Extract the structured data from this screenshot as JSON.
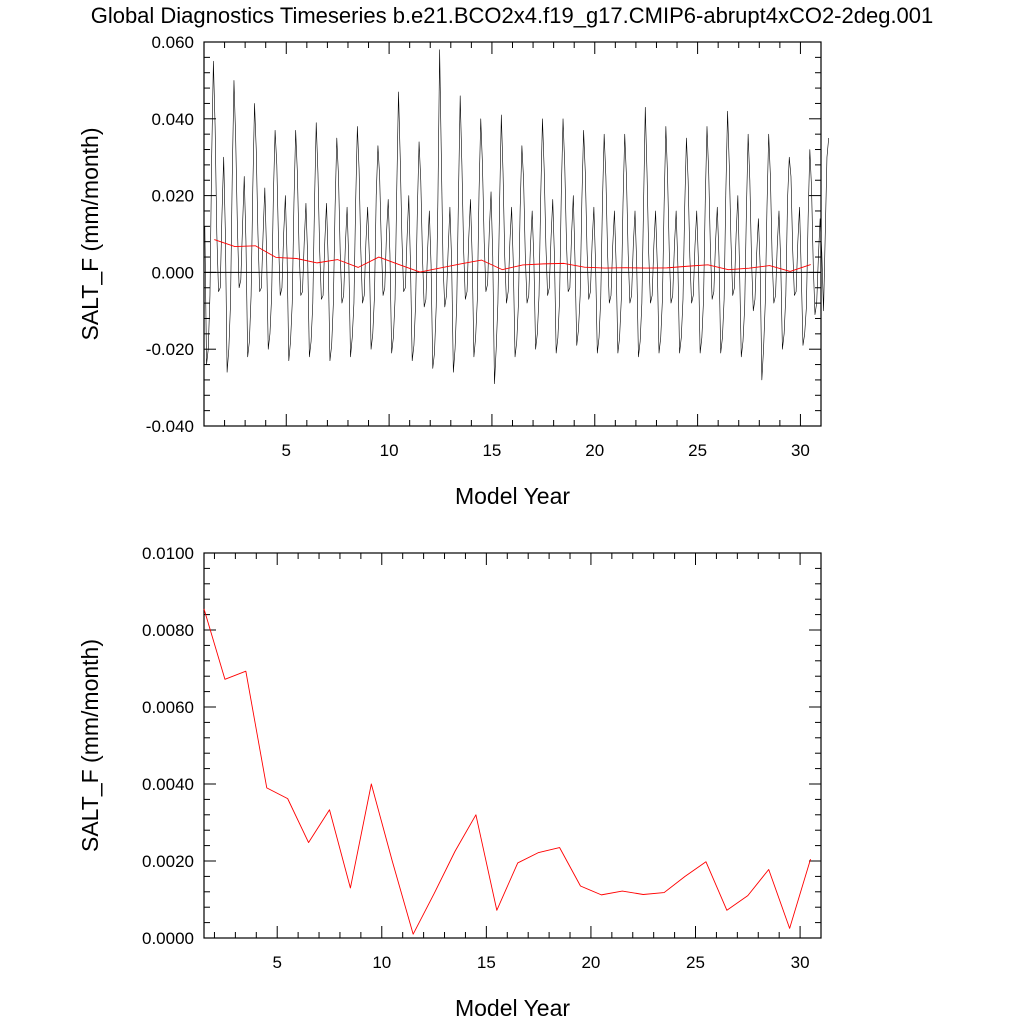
{
  "title": "Global Diagnostics Timeseries b.e21.BCO2x4.f19_g17.CMIP6-abrupt4xCO2-2deg.001",
  "colors": {
    "monthly": "#000000",
    "annual": "#ff0000",
    "zero_line": "#000000"
  },
  "chart_data": [
    {
      "type": "line",
      "xlabel": "Model Year",
      "ylabel": "SALT_F (mm/month)",
      "xlim": [
        1,
        31
      ],
      "ylim": [
        -0.04,
        0.06
      ],
      "xticks": [
        5,
        10,
        15,
        20,
        25,
        30
      ],
      "xtick_labels": [
        "5",
        "10",
        "15",
        "20",
        "25",
        "30"
      ],
      "yticks": [
        -0.04,
        -0.02,
        0.0,
        0.02,
        0.04,
        0.06
      ],
      "ytick_labels": [
        "-0.040",
        "-0.020",
        "0.000",
        "0.020",
        "0.040",
        "0.060"
      ],
      "reference_line_y": 0,
      "series": [
        {
          "color": "#000000",
          "x_start": 1.04,
          "x_step": 0.0833333,
          "values": [
            0.012,
            -0.024,
            -0.02,
            -0.006,
            0.03,
            0.055,
            0.038,
            0.01,
            -0.005,
            -0.004,
            0.015,
            0.03,
            0.01,
            -0.026,
            -0.02,
            -0.008,
            0.025,
            0.05,
            0.035,
            0.012,
            -0.004,
            -0.002,
            0.012,
            0.025,
            0.008,
            -0.022,
            -0.018,
            -0.006,
            0.022,
            0.044,
            0.032,
            0.01,
            -0.005,
            -0.004,
            0.01,
            0.022,
            0.006,
            -0.02,
            -0.016,
            -0.006,
            0.02,
            0.037,
            0.028,
            0.008,
            -0.006,
            -0.004,
            0.01,
            0.02,
            0.004,
            -0.023,
            -0.018,
            -0.008,
            0.018,
            0.037,
            0.026,
            0.006,
            -0.006,
            -0.005,
            0.008,
            0.018,
            0.004,
            -0.022,
            -0.018,
            -0.008,
            0.018,
            0.039,
            0.026,
            0.006,
            -0.007,
            -0.006,
            0.008,
            0.018,
            0.003,
            -0.023,
            -0.019,
            -0.008,
            0.017,
            0.035,
            0.025,
            0.005,
            -0.008,
            -0.006,
            0.007,
            0.017,
            0.003,
            -0.022,
            -0.017,
            -0.008,
            0.018,
            0.038,
            0.027,
            0.006,
            -0.008,
            -0.006,
            0.008,
            0.017,
            0.004,
            -0.02,
            -0.016,
            -0.006,
            0.02,
            0.033,
            0.025,
            0.007,
            -0.006,
            -0.004,
            0.01,
            0.019,
            0.005,
            -0.021,
            -0.017,
            -0.007,
            0.022,
            0.047,
            0.03,
            0.009,
            -0.005,
            -0.004,
            0.009,
            0.02,
            0.002,
            -0.023,
            -0.019,
            -0.008,
            0.016,
            0.034,
            0.024,
            0.004,
            -0.009,
            -0.007,
            0.006,
            0.016,
            0.002,
            -0.025,
            -0.021,
            -0.009,
            0.019,
            0.058,
            0.03,
            0.002,
            -0.009,
            -0.006,
            0.006,
            0.017,
            0.003,
            -0.026,
            -0.02,
            -0.008,
            0.02,
            0.046,
            0.028,
            0.006,
            -0.007,
            -0.005,
            0.009,
            0.019,
            0.004,
            -0.022,
            -0.017,
            -0.007,
            0.021,
            0.04,
            0.028,
            0.008,
            -0.005,
            -0.003,
            0.011,
            0.021,
            0.004,
            -0.029,
            -0.02,
            -0.008,
            0.018,
            0.041,
            0.026,
            0.004,
            -0.008,
            -0.005,
            0.008,
            0.017,
            0.002,
            -0.022,
            -0.018,
            -0.008,
            0.017,
            0.033,
            0.024,
            0.004,
            -0.008,
            -0.006,
            0.007,
            0.016,
            0.003,
            -0.02,
            -0.016,
            -0.006,
            0.02,
            0.04,
            0.027,
            0.007,
            -0.006,
            -0.004,
            0.009,
            0.019,
            0.004,
            -0.021,
            -0.017,
            -0.007,
            0.021,
            0.04,
            0.028,
            0.008,
            -0.005,
            -0.004,
            0.01,
            0.02,
            0.003,
            -0.019,
            -0.015,
            -0.006,
            0.019,
            0.037,
            0.026,
            0.006,
            -0.007,
            -0.005,
            0.008,
            0.017,
            0.002,
            -0.021,
            -0.017,
            -0.007,
            0.018,
            0.036,
            0.025,
            0.005,
            -0.008,
            -0.006,
            0.007,
            0.016,
            0.002,
            -0.021,
            -0.017,
            -0.007,
            0.018,
            0.036,
            0.025,
            0.005,
            -0.008,
            -0.006,
            0.007,
            0.016,
            0.002,
            -0.022,
            -0.018,
            -0.008,
            0.018,
            0.043,
            0.026,
            0.005,
            -0.008,
            -0.006,
            0.007,
            0.016,
            0.002,
            -0.021,
            -0.017,
            -0.007,
            0.018,
            0.038,
            0.025,
            0.005,
            -0.008,
            -0.006,
            0.007,
            0.016,
            0.002,
            -0.021,
            -0.017,
            -0.007,
            0.017,
            0.035,
            0.024,
            0.004,
            -0.008,
            -0.006,
            0.007,
            0.016,
            0.003,
            -0.021,
            -0.017,
            -0.007,
            0.019,
            0.038,
            0.026,
            0.006,
            -0.007,
            -0.005,
            0.008,
            0.017,
            0.004,
            -0.021,
            -0.017,
            -0.007,
            0.021,
            0.042,
            0.028,
            0.008,
            -0.006,
            -0.004,
            0.01,
            0.02,
            0.001,
            -0.022,
            -0.018,
            -0.009,
            0.016,
            0.036,
            0.024,
            0.003,
            -0.01,
            -0.007,
            0.005,
            0.014,
            0.002,
            -0.028,
            -0.02,
            -0.008,
            0.017,
            0.036,
            0.025,
            0.004,
            -0.008,
            -0.006,
            0.007,
            0.016,
            0.003,
            -0.02,
            -0.016,
            -0.006,
            0.019,
            0.03,
            0.025,
            0.006,
            -0.006,
            -0.005,
            0.008,
            0.017,
            0.0,
            -0.019,
            -0.016,
            -0.009,
            0.014,
            0.032,
            0.022,
            0.002,
            -0.011,
            -0.008,
            0.004,
            0.014,
            0.005,
            -0.01,
            0.01,
            0.03,
            0.035
          ]
        },
        {
          "color": "#ff0000",
          "x": [
            1.5,
            2.5,
            3.5,
            4.5,
            5.5,
            6.5,
            7.5,
            8.5,
            9.5,
            10.5,
            11.5,
            12.5,
            13.5,
            14.5,
            15.5,
            16.5,
            17.5,
            18.5,
            19.5,
            20.5,
            21.5,
            22.5,
            23.5,
            24.5,
            25.5,
            26.5,
            27.5,
            28.5,
            29.5,
            30.5
          ],
          "values": [
            0.00855,
            0.00672,
            0.00693,
            0.0039,
            0.00362,
            0.00248,
            0.00333,
            0.0013,
            0.004,
            0.002,
            0.0001,
            0.00115,
            0.00225,
            0.0032,
            0.00072,
            0.00195,
            0.00222,
            0.00235,
            0.00135,
            0.00112,
            0.00122,
            0.00113,
            0.00118,
            0.0016,
            0.00198,
            0.00072,
            0.0011,
            0.00178,
            0.00025,
            0.00205
          ]
        }
      ]
    },
    {
      "type": "line",
      "xlabel": "Model Year",
      "ylabel": "SALT_F (mm/month)",
      "xlim": [
        1.5,
        31
      ],
      "ylim": [
        0,
        0.01
      ],
      "xticks": [
        5,
        10,
        15,
        20,
        25,
        30
      ],
      "xtick_labels": [
        "5",
        "10",
        "15",
        "20",
        "25",
        "30"
      ],
      "yticks": [
        0,
        0.002,
        0.004,
        0.006,
        0.008,
        0.01
      ],
      "ytick_labels": [
        "0.0000",
        "0.0020",
        "0.0040",
        "0.0060",
        "0.0080",
        "0.0100"
      ],
      "series": [
        {
          "color": "#ff0000",
          "x": [
            1.5,
            2.5,
            3.5,
            4.5,
            5.5,
            6.5,
            7.5,
            8.5,
            9.5,
            10.5,
            11.5,
            12.5,
            13.5,
            14.5,
            15.5,
            16.5,
            17.5,
            18.5,
            19.5,
            20.5,
            21.5,
            22.5,
            23.5,
            24.5,
            25.5,
            26.5,
            27.5,
            28.5,
            29.5,
            30.5
          ],
          "values": [
            0.00855,
            0.00672,
            0.00693,
            0.0039,
            0.00362,
            0.00248,
            0.00333,
            0.0013,
            0.004,
            0.002,
            0.0001,
            0.00115,
            0.00225,
            0.0032,
            0.00072,
            0.00195,
            0.00222,
            0.00235,
            0.00135,
            0.00112,
            0.00122,
            0.00113,
            0.00118,
            0.0016,
            0.00198,
            0.00072,
            0.0011,
            0.00178,
            0.00025,
            0.00205
          ]
        }
      ]
    }
  ]
}
